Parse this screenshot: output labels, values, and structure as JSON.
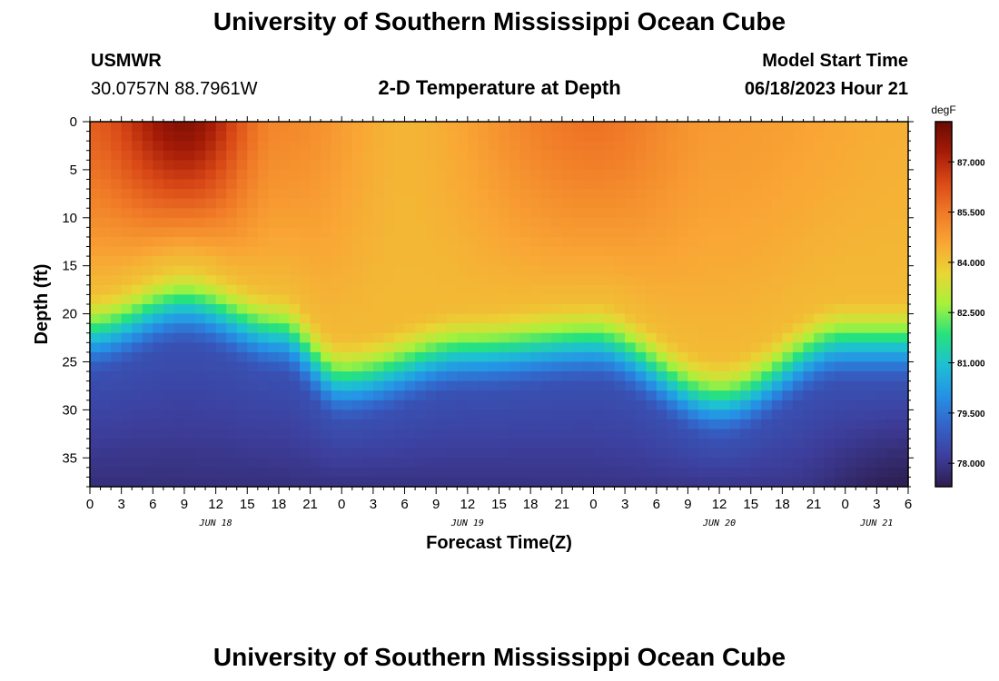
{
  "header": {
    "title": "University of Southern Mississippi Ocean Cube",
    "station": "USMWR",
    "coords": "30.0757N  88.7961W",
    "subtitle": "2-D Temperature at Depth",
    "model_label": "Model Start Time",
    "model_time": "06/18/2023 Hour 21"
  },
  "footer": {
    "title": "University of Southern Mississippi Ocean Cube"
  },
  "chart_data": {
    "type": "heatmap",
    "title": "2-D Temperature at Depth",
    "xlabel": "Forecast Time(Z)",
    "ylabel": "Depth (ft)",
    "x_tick_labels": [
      "0",
      "3",
      "6",
      "9",
      "12",
      "15",
      "18",
      "21",
      "0",
      "3",
      "6",
      "9",
      "12",
      "15",
      "18",
      "21",
      "0",
      "3",
      "6",
      "9",
      "12",
      "15",
      "18",
      "21",
      "0",
      "3",
      "6"
    ],
    "x_range_hours": [
      0,
      78
    ],
    "date_labels": [
      {
        "label": "JUN 18",
        "hour": 12
      },
      {
        "label": "JUN 19",
        "hour": 36
      },
      {
        "label": "JUN 20",
        "hour": 60
      },
      {
        "label": "JUN 21",
        "hour": 75
      }
    ],
    "y_ticks": [
      0,
      5,
      10,
      15,
      20,
      25,
      30,
      35
    ],
    "y_range_ft": [
      0,
      38
    ],
    "y_inverted": true,
    "colorbar": {
      "unit": "degF",
      "ticks": [
        "87.000",
        "85.500",
        "84.000",
        "82.500",
        "81.000",
        "79.500",
        "78.000"
      ],
      "range": [
        77.3,
        88.2
      ],
      "colors": [
        "#2d1d4e",
        "#3d3e9c",
        "#3463c8",
        "#2592e6",
        "#1ebfd3",
        "#26e27e",
        "#a6f23c",
        "#e9d634",
        "#f9a635",
        "#f07a27",
        "#d94917",
        "#a51b07",
        "#6a0a03"
      ]
    },
    "surface_temperature_degF": [
      {
        "hour": 0,
        "value": 86.0
      },
      {
        "hour": 9,
        "value": 87.8
      },
      {
        "hour": 18,
        "value": 85.2
      },
      {
        "hour": 30,
        "value": 84.3
      },
      {
        "hour": 48,
        "value": 85.6
      },
      {
        "hour": 60,
        "value": 84.8
      },
      {
        "hour": 78,
        "value": 84.4
      }
    ],
    "thermocline_depth_ft": [
      {
        "hour": 0,
        "value": 21
      },
      {
        "hour": 9,
        "value": 18
      },
      {
        "hour": 18,
        "value": 21
      },
      {
        "hour": 24,
        "value": 26
      },
      {
        "hour": 36,
        "value": 23
      },
      {
        "hour": 48,
        "value": 22
      },
      {
        "hour": 60,
        "value": 28
      },
      {
        "hour": 72,
        "value": 22
      },
      {
        "hour": 78,
        "value": 22
      }
    ],
    "deep_temperature_degF": [
      {
        "hour": 0,
        "value": 77.8
      },
      {
        "hour": 36,
        "value": 77.9
      },
      {
        "hour": 66,
        "value": 78.0
      },
      {
        "hour": 78,
        "value": 77.3
      }
    ]
  }
}
